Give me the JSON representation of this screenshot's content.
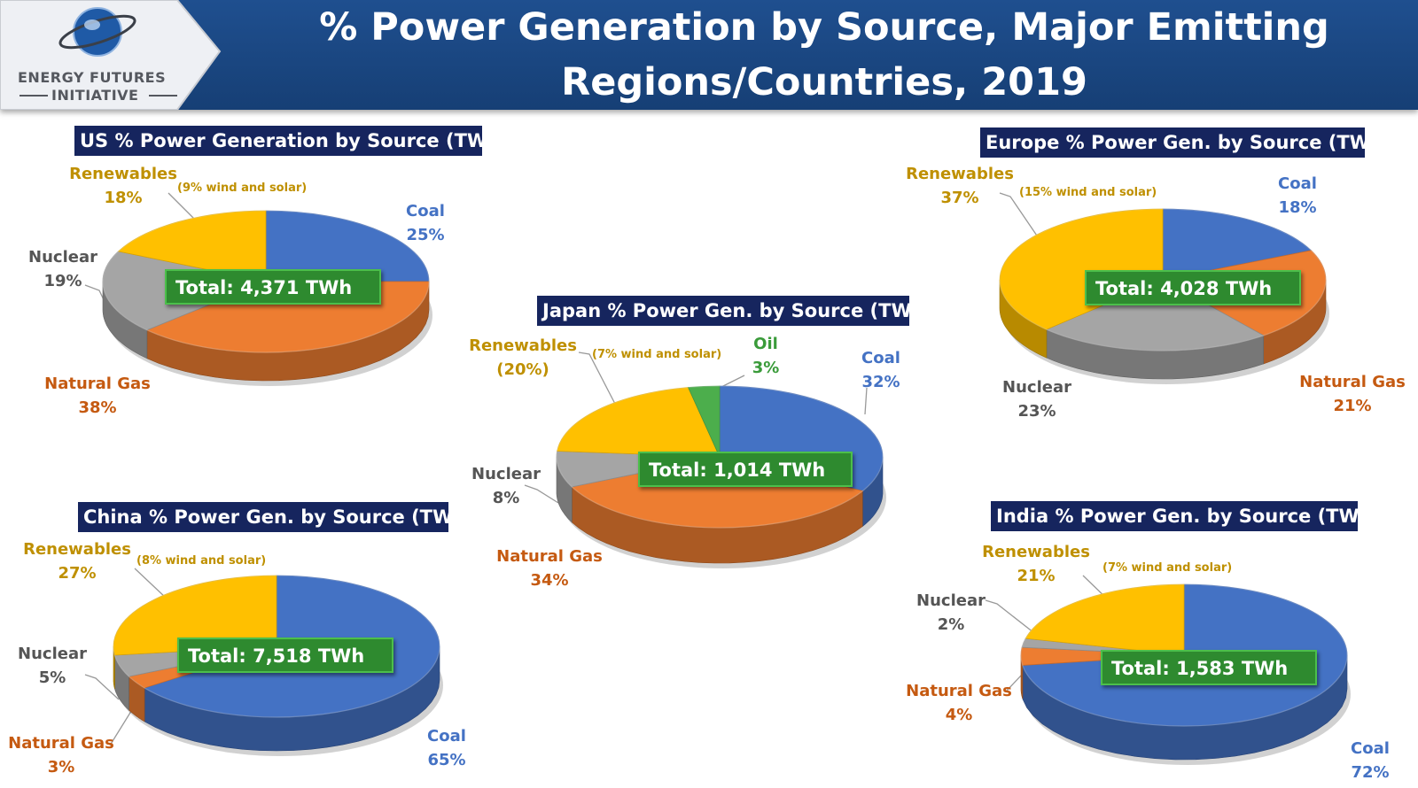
{
  "header": {
    "title_line1": "% Power Generation by Source, Major Emitting",
    "title_line2": "Regions/Countries, 2019",
    "logo_line1": "ENERGY FUTURES",
    "logo_line2": "INITIATIVE",
    "logo_icon": "globe-icon",
    "bg_color": "#1f4f8f"
  },
  "colors": {
    "Coal": "#4472c4",
    "Natural Gas": "#ed7d31",
    "Nuclear": "#a5a5a5",
    "Renewables": "#ffc000",
    "Oil": "#4cae4c"
  },
  "chart_data": [
    {
      "id": "us",
      "type": "pie",
      "title": "US % Power Generation by Source (TWh)",
      "total": "Total: 4,371 TWh",
      "slices": [
        {
          "name": "Coal",
          "label": "Coal",
          "pct_label": "25%",
          "value": 25
        },
        {
          "name": "Natural Gas",
          "label": "Natural Gas",
          "pct_label": "38%",
          "value": 38
        },
        {
          "name": "Nuclear",
          "label": "Nuclear",
          "pct_label": "19%",
          "value": 19
        },
        {
          "name": "Renewables",
          "label": "Renewables",
          "pct_label": "18%",
          "value": 18,
          "note": "(9% wind and solar)"
        }
      ]
    },
    {
      "id": "europe",
      "type": "pie",
      "title": "Europe % Power Gen. by Source (TWh)",
      "total": "Total: 4,028 TWh",
      "slices": [
        {
          "name": "Coal",
          "label": "Coal",
          "pct_label": "18%",
          "value": 18
        },
        {
          "name": "Natural Gas",
          "label": "Natural Gas",
          "pct_label": "21%",
          "value": 21
        },
        {
          "name": "Nuclear",
          "label": "Nuclear",
          "pct_label": "23%",
          "value": 23
        },
        {
          "name": "Renewables",
          "label": "Renewables",
          "pct_label": "37%",
          "value": 37,
          "note": "(15% wind and solar)"
        }
      ]
    },
    {
      "id": "japan",
      "type": "pie",
      "title": "Japan % Power Gen. by Source (TWh)",
      "total": "Total: 1,014 TWh",
      "slices": [
        {
          "name": "Coal",
          "label": "Coal",
          "pct_label": "32%",
          "value": 32
        },
        {
          "name": "Natural Gas",
          "label": "Natural Gas",
          "pct_label": "34%",
          "value": 34
        },
        {
          "name": "Nuclear",
          "label": "Nuclear",
          "pct_label": "8%",
          "value": 8
        },
        {
          "name": "Renewables",
          "label": "Renewables",
          "pct_label": "(20%)",
          "value": 20,
          "note": "(7% wind and solar)"
        },
        {
          "name": "Oil",
          "label": "Oil",
          "pct_label": "3%",
          "value": 3
        }
      ]
    },
    {
      "id": "china",
      "type": "pie",
      "title": "China % Power Gen. by Source (TWh)",
      "total": "Total: 7,518 TWh",
      "slices": [
        {
          "name": "Coal",
          "label": "Coal",
          "pct_label": "65%",
          "value": 65
        },
        {
          "name": "Natural Gas",
          "label": "Natural Gas",
          "pct_label": "3%",
          "value": 3
        },
        {
          "name": "Nuclear",
          "label": "Nuclear",
          "pct_label": "5%",
          "value": 5
        },
        {
          "name": "Renewables",
          "label": "Renewables",
          "pct_label": "27%",
          "value": 27,
          "note": "(8% wind and solar)"
        }
      ]
    },
    {
      "id": "india",
      "type": "pie",
      "title": "India % Power Gen. by Source (TWh)",
      "total": "Total: 1,583 TWh",
      "slices": [
        {
          "name": "Coal",
          "label": "Coal",
          "pct_label": "72%",
          "value": 72
        },
        {
          "name": "Natural Gas",
          "label": "Natural Gas",
          "pct_label": "4%",
          "value": 4
        },
        {
          "name": "Nuclear",
          "label": "Nuclear",
          "pct_label": "2%",
          "value": 2
        },
        {
          "name": "Renewables",
          "label": "Renewables",
          "pct_label": "21%",
          "value": 21,
          "note": "(7% wind and solar)"
        }
      ]
    }
  ]
}
